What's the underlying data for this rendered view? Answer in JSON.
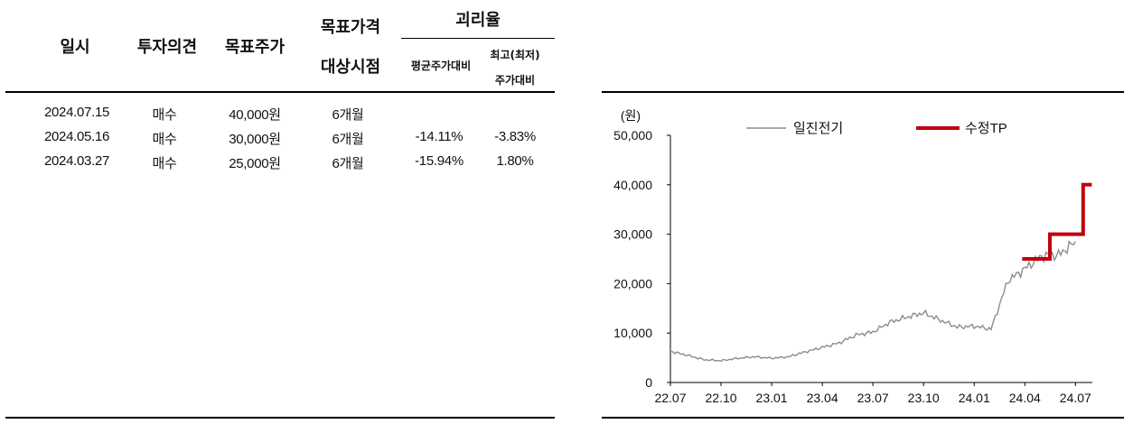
{
  "table": {
    "headers": {
      "date": "일시",
      "opinion": "투자의견",
      "target": "목표주가",
      "target_basis_line1": "목표가격",
      "target_basis_line2": "대상시점",
      "gap": "괴리율",
      "gap_avg": "평균주가대비",
      "gap_extreme_line1": "최고(최저)",
      "gap_extreme_line2": "주가대비"
    },
    "rows": [
      {
        "date": "2024.07.15",
        "opinion": "매수",
        "target": "40,000원",
        "basis": "6개월",
        "avg": "",
        "extreme": ""
      },
      {
        "date": "2024.05.16",
        "opinion": "매수",
        "target": "30,000원",
        "basis": "6개월",
        "avg": "-14.11%",
        "extreme": "-3.83%"
      },
      {
        "date": "2024.03.27",
        "opinion": "매수",
        "target": "25,000원",
        "basis": "6개월",
        "avg": "-15.94%",
        "extreme": "1.80%"
      }
    ]
  },
  "chart_data": {
    "type": "line",
    "ylabel": "(원)",
    "ylim": [
      0,
      50000
    ],
    "yticks": [
      "0",
      "10,000",
      "20,000",
      "30,000",
      "40,000",
      "50,000"
    ],
    "xticks": [
      "22.07",
      "22.10",
      "23.01",
      "23.04",
      "23.07",
      "23.10",
      "24.01",
      "24.04",
      "24.07"
    ],
    "legend_position": "top",
    "series": [
      {
        "name": "일진전기",
        "color": "#8c8c8c",
        "x": [
          "2022.07",
          "2022.08",
          "2022.09",
          "2022.10",
          "2022.11",
          "2022.12",
          "2023.01",
          "2023.02",
          "2023.03",
          "2023.04",
          "2023.05",
          "2023.06",
          "2023.07",
          "2023.08",
          "2023.09",
          "2023.10",
          "2023.11",
          "2023.12",
          "2024.01",
          "2024.02",
          "2024.03",
          "2024.04",
          "2024.05",
          "2024.06",
          "2024.07"
        ],
        "values": [
          6300,
          5500,
          4600,
          4400,
          4900,
          5200,
          4900,
          5200,
          6200,
          7100,
          8000,
          9600,
          10200,
          12200,
          13200,
          14100,
          12600,
          11200,
          11400,
          10800,
          20600,
          23000,
          25600,
          25800,
          28500
        ]
      },
      {
        "name": "수정TP",
        "color": "#c0000c",
        "x": [
          "2024.03.27",
          "2024.05.16",
          "2024.07.15",
          "2024.07.31"
        ],
        "values": [
          25000,
          30000,
          40000,
          40000
        ]
      }
    ]
  }
}
